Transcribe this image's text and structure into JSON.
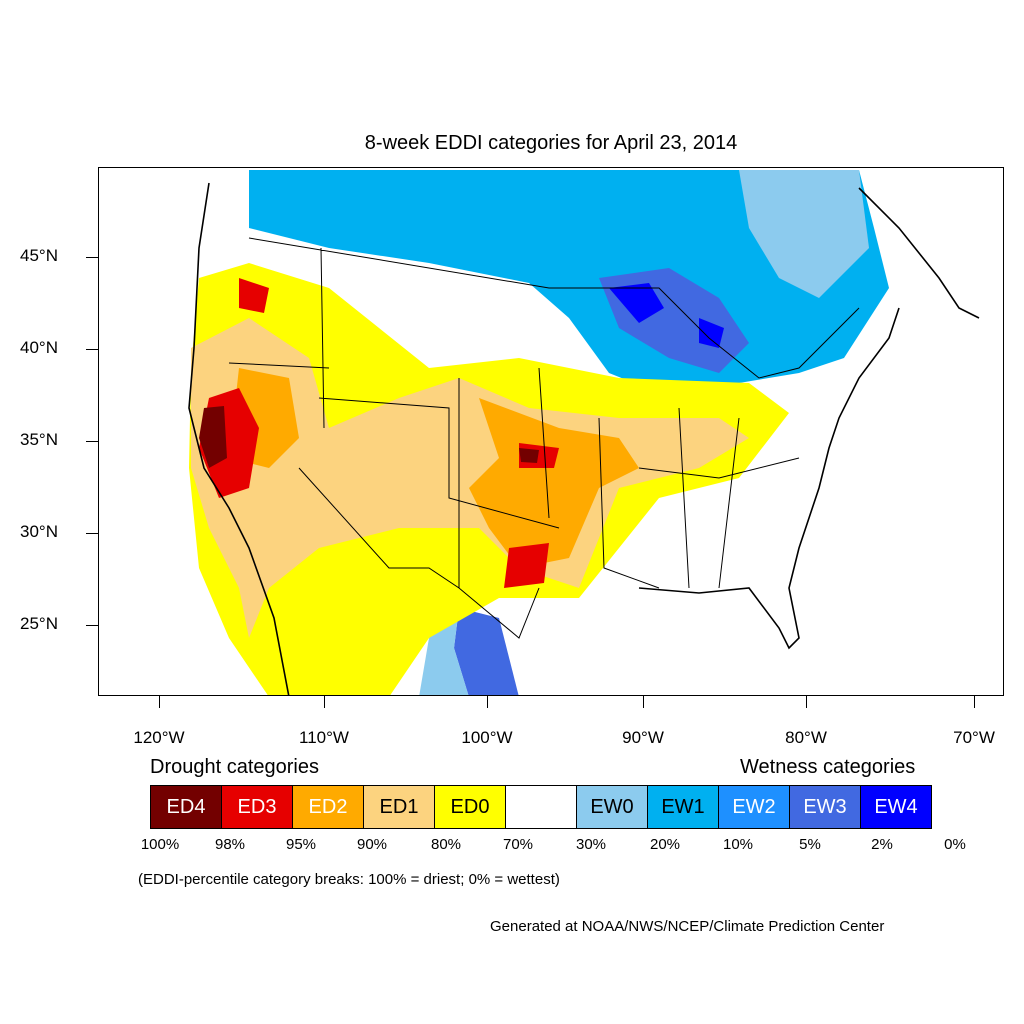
{
  "title": "8-week EDDI categories for April 23, 2014",
  "lat_labels": [
    "45°N",
    "40°N",
    "35°N",
    "30°N",
    "25°N"
  ],
  "lon_labels": [
    "120°W",
    "110°W",
    "100°W",
    "90°W",
    "80°W",
    "70°W"
  ],
  "legend": {
    "drought_heading": "Drought categories",
    "wetness_heading": "Wetness categories",
    "categories": [
      {
        "label": "ED4",
        "color": "#730000",
        "text_color": "#ffffff"
      },
      {
        "label": "ED3",
        "color": "#e60000",
        "text_color": "#ffffff"
      },
      {
        "label": "ED2",
        "color": "#ffaa00",
        "text_color": "#ffffff"
      },
      {
        "label": "ED1",
        "color": "#fcd37f",
        "text_color": "#000000"
      },
      {
        "label": "ED0",
        "color": "#ffff00",
        "text_color": "#000000"
      },
      {
        "label": "",
        "color": "#ffffff",
        "text_color": "#000000"
      },
      {
        "label": "EW0",
        "color": "#8ccbee",
        "text_color": "#000000"
      },
      {
        "label": "EW1",
        "color": "#00b0f0",
        "text_color": "#000000"
      },
      {
        "label": "EW2",
        "color": "#1e90ff",
        "text_color": "#ffffff"
      },
      {
        "label": "EW3",
        "color": "#4169e1",
        "text_color": "#ffffff"
      },
      {
        "label": "EW4",
        "color": "#0000ff",
        "text_color": "#ffffff"
      }
    ],
    "percentiles": [
      "100%",
      "98%",
      "95%",
      "90%",
      "80%",
      "70%",
      "30%",
      "20%",
      "10%",
      "5%",
      "2%",
      "0%"
    ]
  },
  "note": "(EDDI-percentile category breaks: 100% = driest; 0% = wettest)",
  "credit": "Generated at NOAA/NWS/NCEP/Climate Prediction Center"
}
